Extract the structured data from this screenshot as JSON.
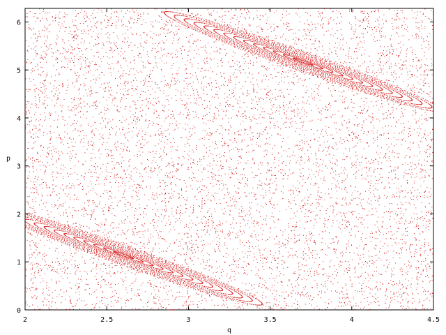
{
  "chart_data": {
    "type": "scatter",
    "title": "",
    "xlabel": "q",
    "ylabel": "p",
    "xlim": [
      2,
      4.5
    ],
    "ylim": [
      0,
      6.283
    ],
    "xticks": [
      "2",
      "2.5",
      "3",
      "3.5",
      "4",
      "4.5"
    ],
    "yticks": [
      "0",
      "1",
      "2",
      "3",
      "4",
      "5",
      "6"
    ],
    "grid": false,
    "legend": "none",
    "point_color": "#d62020",
    "series": [
      {
        "islands": [
          {
            "center_q": 2.6,
            "center_p": 1.15,
            "slope": -1.2,
            "major": 0.85,
            "minor": 0.22
          },
          {
            "center_q": 3.7,
            "center_p": 5.18,
            "slope": -1.2,
            "major": 0.85,
            "minor": 0.22
          }
        ]
      }
    ]
  }
}
